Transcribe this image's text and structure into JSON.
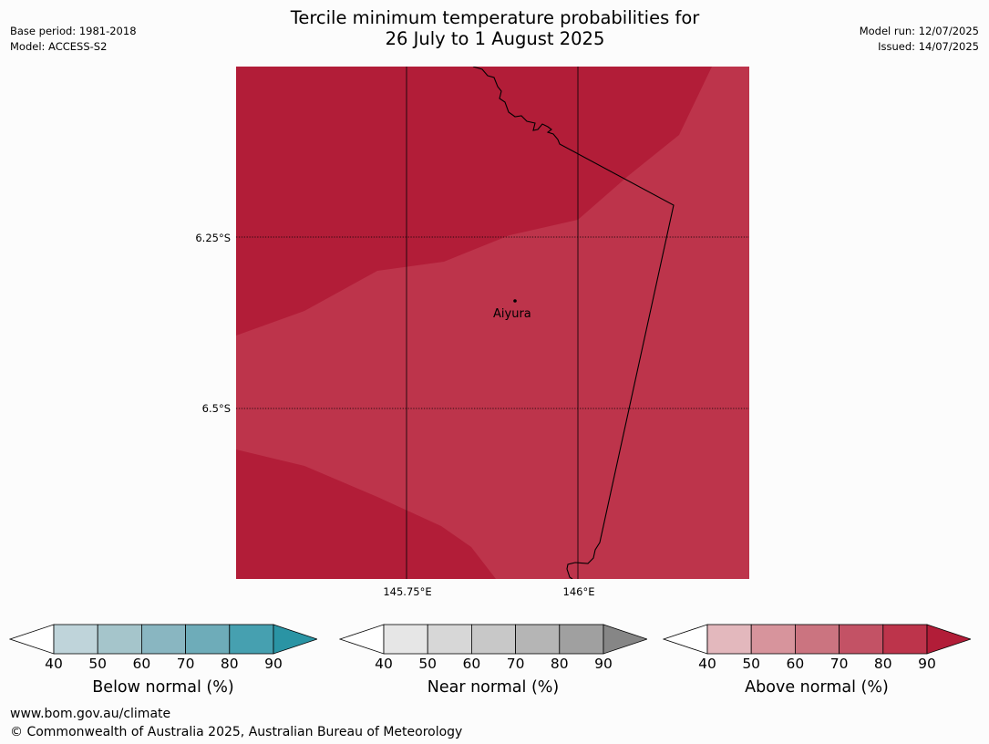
{
  "header": {
    "title_line1": "Tercile minimum temperature probabilities for",
    "title_line2": "26 July to 1 August 2025",
    "base_period": "Base period: 1981-2018",
    "model": "Model: ACCESS-S2",
    "model_run": "Model run: 12/07/2025",
    "issued": "Issued: 14/07/2025"
  },
  "map": {
    "latitude_labels": [
      "6.25°S",
      "6.5°S"
    ],
    "longitude_labels": [
      "145.75°E",
      "146°E"
    ],
    "place_label": "Aiyura",
    "colors": {
      "above_80_90": "#b21d38",
      "above_70_80": "#bd344b",
      "border": "#000000"
    }
  },
  "colorbars": [
    {
      "label": "Below normal (%)",
      "ticks": [
        "40",
        "50",
        "60",
        "70",
        "80",
        "90"
      ],
      "colors": [
        "#ffffff",
        "#bfd4da",
        "#a5c5cb",
        "#89b6c1",
        "#6eacb9",
        "#46a0b0",
        "#2a94a4"
      ]
    },
    {
      "label": "Near normal (%)",
      "ticks": [
        "40",
        "50",
        "60",
        "70",
        "80",
        "90"
      ],
      "colors": [
        "#ffffff",
        "#e6e6e6",
        "#d7d7d7",
        "#c8c8c8",
        "#b5b5b5",
        "#a0a0a0",
        "#868686"
      ]
    },
    {
      "label": "Above normal (%)",
      "ticks": [
        "40",
        "50",
        "60",
        "70",
        "80",
        "90"
      ],
      "colors": [
        "#ffffff",
        "#e3b8bd",
        "#d7949c",
        "#cb7480",
        "#c35265",
        "#bd344b",
        "#b21d38"
      ]
    }
  ],
  "footer": {
    "url": "www.bom.gov.au/climate",
    "copyright": "© Commonwealth of Australia 2025, Australian Bureau of Meteorology"
  }
}
